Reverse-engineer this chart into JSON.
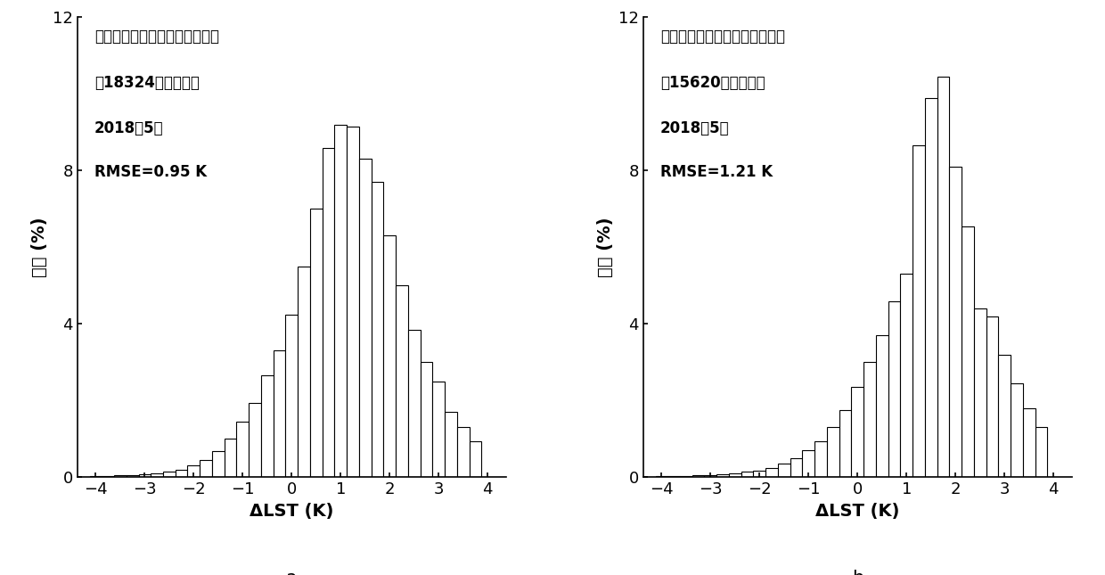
{
  "left": {
    "title_line1": "澳大利亚晚上观测数据应用结果",
    "title_line2": "共18324个有效像素",
    "title_line3": "2018年5月",
    "title_line4": "RMSE=0.95 K",
    "label": "a",
    "bar_centers": [
      -4.0,
      -3.75,
      -3.5,
      -3.25,
      -3.0,
      -2.75,
      -2.5,
      -2.25,
      -2.0,
      -1.75,
      -1.5,
      -1.25,
      -1.0,
      -0.75,
      -0.5,
      -0.25,
      0.0,
      0.25,
      0.5,
      0.75,
      1.0,
      1.25,
      1.5,
      1.75,
      2.0,
      2.25,
      2.5,
      2.75,
      3.0,
      3.25,
      3.5,
      3.75
    ],
    "bar_heights": [
      0.03,
      0.04,
      0.05,
      0.06,
      0.08,
      0.1,
      0.14,
      0.2,
      0.3,
      0.45,
      0.68,
      1.0,
      1.45,
      1.95,
      2.65,
      3.3,
      4.25,
      5.5,
      7.0,
      8.6,
      9.2,
      9.15,
      8.3,
      7.7,
      6.3,
      5.0,
      3.85,
      3.0,
      2.5,
      1.7,
      1.3,
      0.95
    ],
    "ylabel": "频率 (%)",
    "xlabel": "ΔLST (K)"
  },
  "right": {
    "title_line1": "澳大利亚白天观测数据应用结果",
    "title_line2": "共15620个有效像素",
    "title_line3": "2018年5月",
    "title_line4": "RMSE=1.21 K",
    "label": "b",
    "bar_centers": [
      -4.0,
      -3.75,
      -3.5,
      -3.25,
      -3.0,
      -2.75,
      -2.5,
      -2.25,
      -2.0,
      -1.75,
      -1.5,
      -1.25,
      -1.0,
      -0.75,
      -0.5,
      -0.25,
      0.0,
      0.25,
      0.5,
      0.75,
      1.0,
      1.25,
      1.5,
      1.75,
      2.0,
      2.25,
      2.5,
      2.75,
      3.0,
      3.25,
      3.5,
      3.75
    ],
    "bar_heights": [
      0.02,
      0.03,
      0.04,
      0.05,
      0.06,
      0.08,
      0.1,
      0.14,
      0.18,
      0.25,
      0.35,
      0.5,
      0.7,
      0.95,
      1.3,
      1.75,
      2.35,
      3.0,
      3.7,
      4.6,
      5.3,
      8.65,
      9.9,
      10.45,
      8.1,
      6.55,
      4.4,
      4.2,
      3.2,
      2.45,
      1.8,
      1.3
    ],
    "ylabel": "频率 (%)",
    "xlabel": "ΔLST (K)"
  },
  "ylim": [
    0,
    12
  ],
  "xlim": [
    -4.375,
    4.375
  ],
  "yticks": [
    0,
    4,
    8,
    12
  ],
  "xticks": [
    -4,
    -3,
    -2,
    -1,
    0,
    1,
    2,
    3,
    4
  ],
  "bar_width": 0.25,
  "bar_facecolor": "white",
  "bar_edgecolor": "black",
  "background_color": "white",
  "font_size_tick": 13,
  "font_size_label": 14,
  "font_size_annot": 12,
  "font_size_sublabel": 15
}
